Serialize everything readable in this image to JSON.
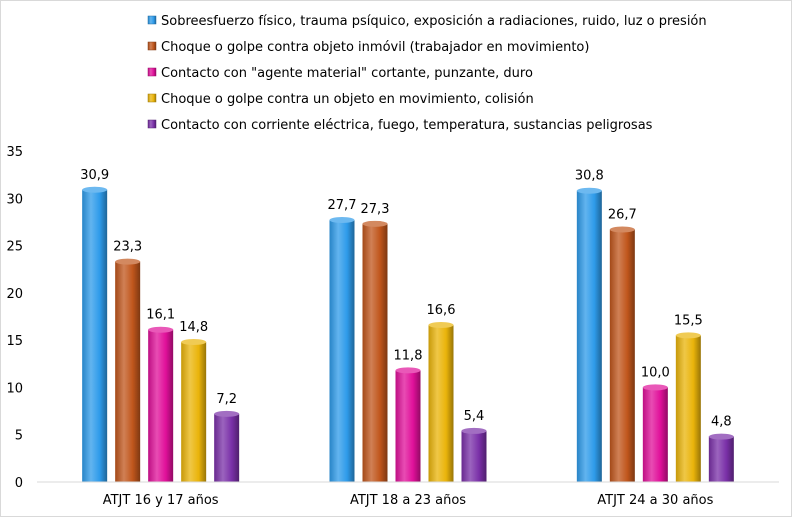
{
  "chart_data": {
    "type": "bar",
    "title": "",
    "xlabel": "",
    "ylabel": "",
    "ylim": [
      0,
      35
    ],
    "yticks": [
      0,
      5,
      10,
      15,
      20,
      25,
      30,
      35
    ],
    "grid": false,
    "legend_position": "top",
    "categories": [
      "ATJT 16 y 17 años",
      "ATJT 18 a 23 años",
      "ATJT 24 a 30 años"
    ],
    "series": [
      {
        "name": "Sobreesfuerzo físico, trauma psíquico, exposición a radiaciones, ruido, luz o presión",
        "values": [
          30.9,
          27.7,
          30.8
        ],
        "labels": [
          "30,9",
          "27,7",
          "30,8"
        ],
        "color": "#2e9bea"
      },
      {
        "name": "Choque o golpe contra objeto inmóvil  (trabajador en movimiento)",
        "values": [
          23.3,
          27.3,
          26.7
        ],
        "labels": [
          "23,3",
          "27,3",
          "26,7"
        ],
        "color": "#c0561c"
      },
      {
        "name": "Contacto con \"agente material\" cortante, punzante, duro",
        "values": [
          16.1,
          11.8,
          10.0
        ],
        "labels": [
          "16,1",
          "11,8",
          "10,0"
        ],
        "color": "#e0109a"
      },
      {
        "name": "Choque o golpe contra un objeto en movimiento, colisión",
        "values": [
          14.8,
          16.6,
          15.5
        ],
        "labels": [
          "14,8",
          "16,6",
          "15,5"
        ],
        "color": "#eab40a"
      },
      {
        "name": "Contacto con corriente eléctrica, fuego, temperatura, sustancias peligrosas",
        "values": [
          7.2,
          5.4,
          4.8
        ],
        "labels": [
          "7,2",
          "5,4",
          "4,8"
        ],
        "color": "#7a30a8"
      }
    ]
  }
}
